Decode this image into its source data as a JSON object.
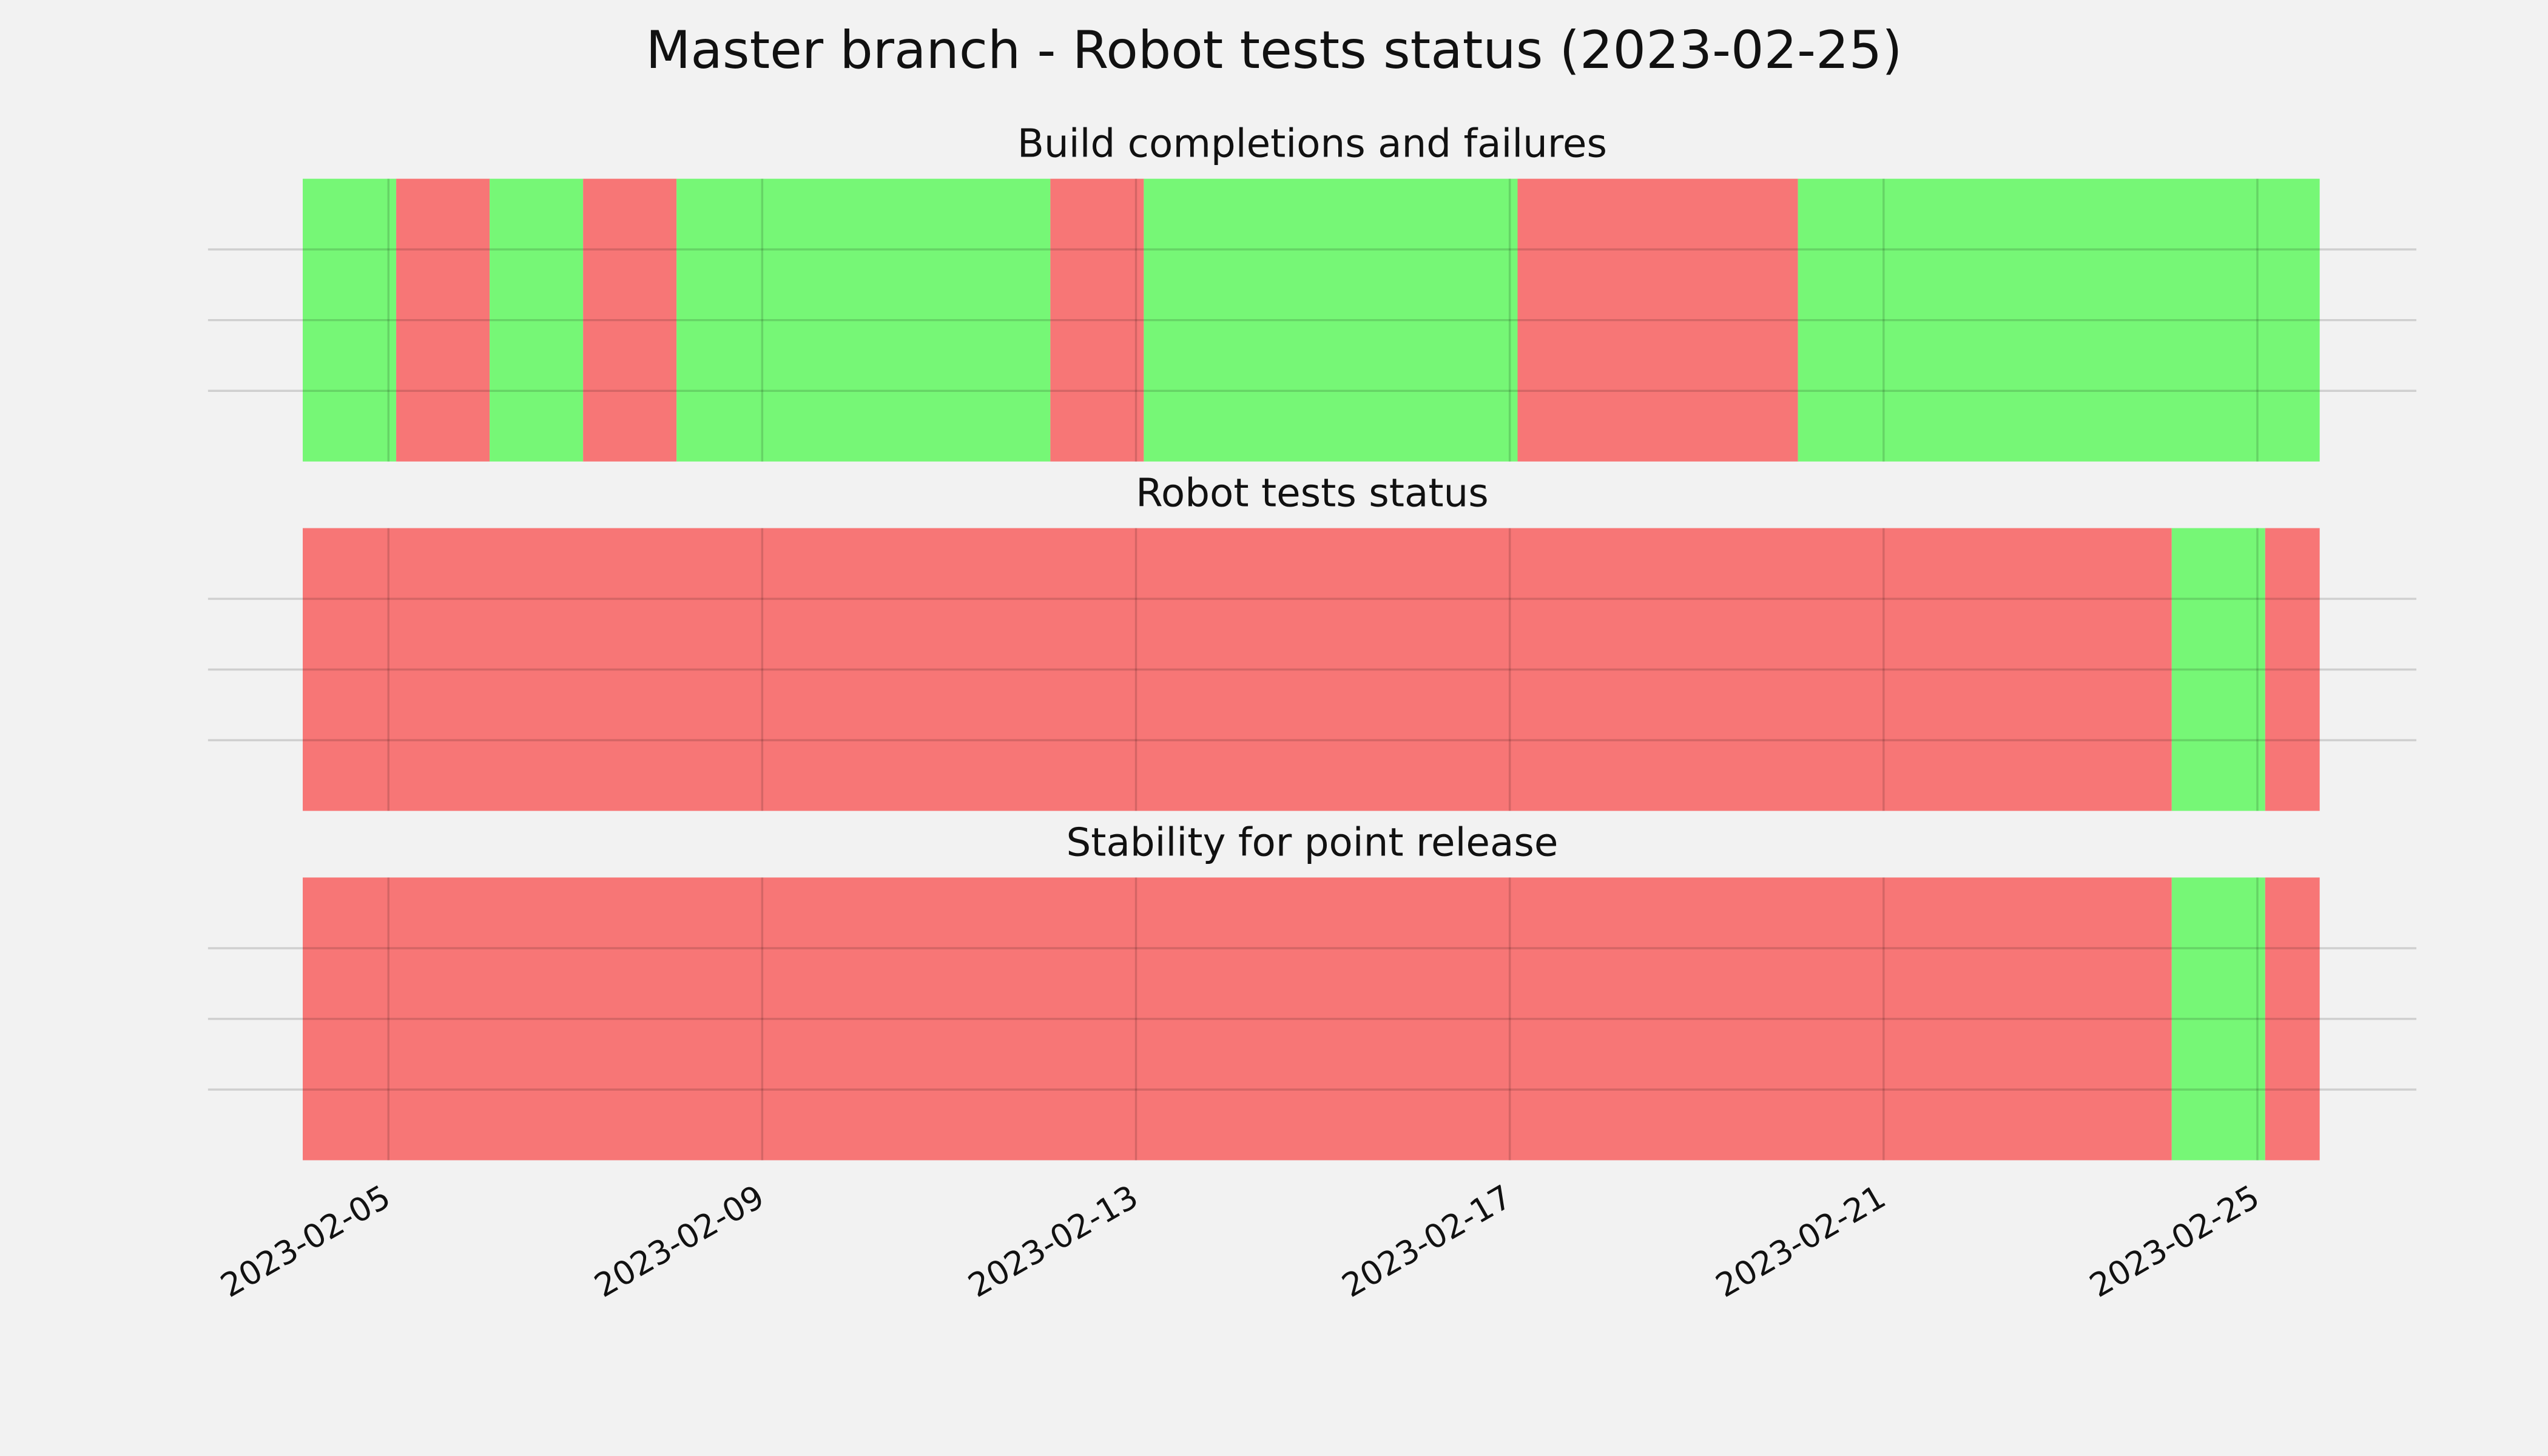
{
  "title": "Master branch - Robot tests status (2023-02-25)",
  "chart_data": [
    {
      "type": "timeline",
      "title": "Build completions and failures",
      "segments": [
        {
          "start": "2023-02-04T02:00",
          "end": "2023-02-05T02:00",
          "color": "#76f776"
        },
        {
          "start": "2023-02-05T02:00",
          "end": "2023-02-06T02:00",
          "color": "#f77676"
        },
        {
          "start": "2023-02-06T02:00",
          "end": "2023-02-07T02:00",
          "color": "#76f776"
        },
        {
          "start": "2023-02-07T02:00",
          "end": "2023-02-08T02:00",
          "color": "#f77676"
        },
        {
          "start": "2023-02-08T02:00",
          "end": "2023-02-12T02:00",
          "color": "#76f776"
        },
        {
          "start": "2023-02-12T02:00",
          "end": "2023-02-13T02:00",
          "color": "#f77676"
        },
        {
          "start": "2023-02-13T02:00",
          "end": "2023-02-17T02:00",
          "color": "#76f776"
        },
        {
          "start": "2023-02-17T02:00",
          "end": "2023-02-20T02:00",
          "color": "#f77676"
        },
        {
          "start": "2023-02-20T02:00",
          "end": "2023-02-25T16:00",
          "color": "#76f776"
        }
      ],
      "xlim": [
        "2023-02-03T01:40",
        "2023-02-26T16:50"
      ],
      "xticks": [
        "2023-02-05",
        "2023-02-09",
        "2023-02-13",
        "2023-02-17",
        "2023-02-21",
        "2023-02-25"
      ],
      "ylim": [
        0,
        1
      ],
      "yticks": [
        0.25,
        0.5,
        0.75
      ],
      "grid": true
    },
    {
      "type": "timeline",
      "title": "Robot tests status",
      "segments": [
        {
          "start": "2023-02-04T02:00",
          "end": "2023-02-24T02:00",
          "color": "#f77676"
        },
        {
          "start": "2023-02-24T02:00",
          "end": "2023-02-25T02:00",
          "color": "#76f776"
        },
        {
          "start": "2023-02-25T02:00",
          "end": "2023-02-25T16:00",
          "color": "#f77676"
        }
      ],
      "xlim": [
        "2023-02-03T01:40",
        "2023-02-26T16:50"
      ],
      "xticks": [
        "2023-02-05",
        "2023-02-09",
        "2023-02-13",
        "2023-02-17",
        "2023-02-21",
        "2023-02-25"
      ],
      "ylim": [
        0,
        1
      ],
      "yticks": [
        0.25,
        0.5,
        0.75
      ],
      "grid": true
    },
    {
      "type": "timeline",
      "title": "Stability for point release",
      "segments": [
        {
          "start": "2023-02-04T02:00",
          "end": "2023-02-24T02:00",
          "color": "#f77676"
        },
        {
          "start": "2023-02-24T02:00",
          "end": "2023-02-25T02:00",
          "color": "#76f776"
        },
        {
          "start": "2023-02-25T02:00",
          "end": "2023-02-25T16:00",
          "color": "#f77676"
        }
      ],
      "xlim": [
        "2023-02-03T01:40",
        "2023-02-26T16:50"
      ],
      "xticks": [
        "2023-02-05",
        "2023-02-09",
        "2023-02-13",
        "2023-02-17",
        "2023-02-21",
        "2023-02-25"
      ],
      "ylim": [
        0,
        1
      ],
      "yticks": [
        0.25,
        0.5,
        0.75
      ],
      "grid": true
    }
  ]
}
